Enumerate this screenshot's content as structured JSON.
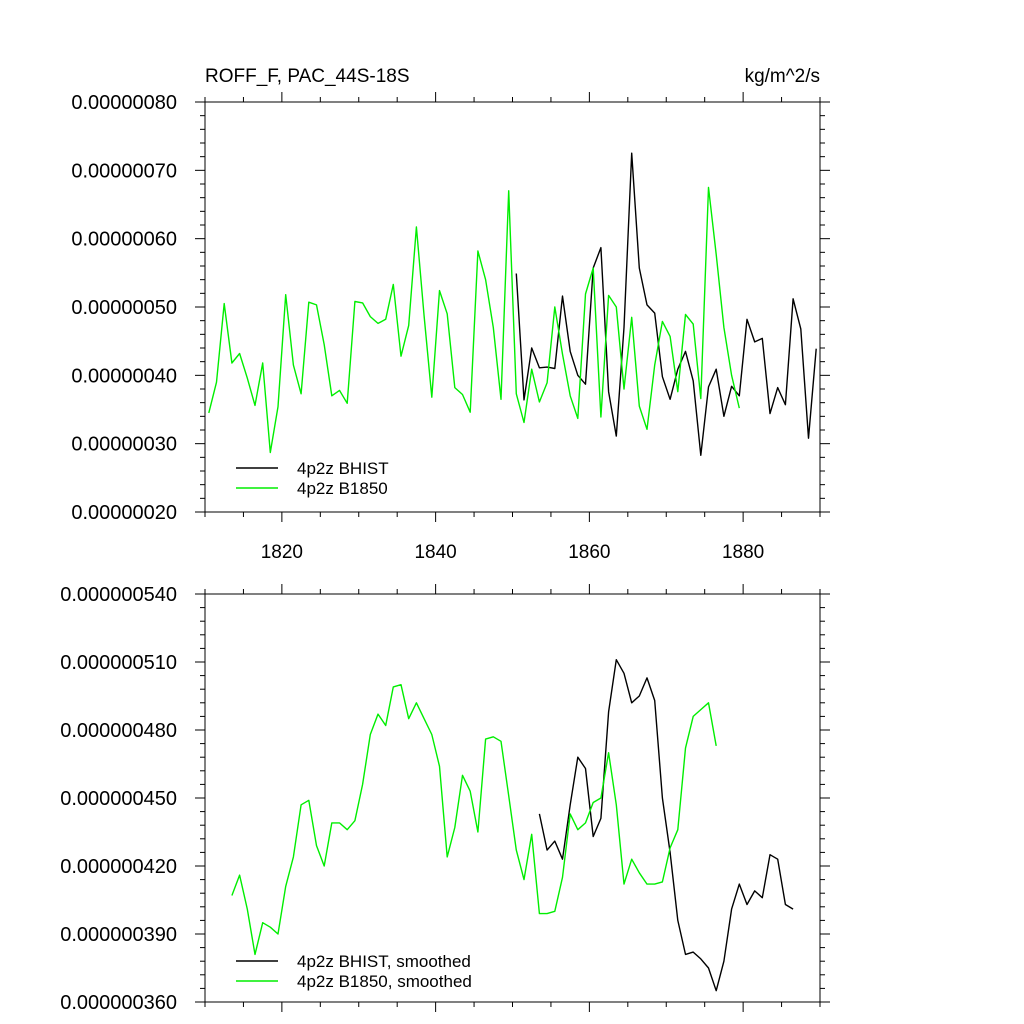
{
  "chart_data": [
    {
      "type": "line",
      "title": "ROFF_F, PAC_44S-18S",
      "units": "kg/m^2/s",
      "xlim": [
        1810,
        1890
      ],
      "ylim": [
        2e-07,
        8e-07
      ],
      "xticks": [
        1820,
        1840,
        1860,
        1880
      ],
      "xtick_labels": [
        "1820",
        "1840",
        "1860",
        "1880"
      ],
      "yticks": [
        2e-07,
        3e-07,
        4e-07,
        5e-07,
        6e-07,
        7e-07,
        8e-07
      ],
      "ytick_labels": [
        "0.00000020",
        "0.00000030",
        "0.00000040",
        "0.00000050",
        "0.00000060",
        "0.00000070",
        "0.00000080"
      ],
      "legend": "bottom-left",
      "series": [
        {
          "name": "4p2z BHIST",
          "color": "#000000",
          "x_start": 1850.5,
          "values": [
            5.49e-07,
            3.64e-07,
            4.4e-07,
            4.11e-07,
            4.12e-07,
            4.1e-07,
            5.16e-07,
            4.35e-07,
            4e-07,
            3.87e-07,
            5.57e-07,
            5.87e-07,
            3.76e-07,
            3.11e-07,
            4.7e-07,
            7.25e-07,
            5.57e-07,
            5.03e-07,
            4.91e-07,
            3.98e-07,
            3.65e-07,
            4.09e-07,
            4.35e-07,
            3.92e-07,
            2.83e-07,
            3.83e-07,
            4.09e-07,
            3.4e-07,
            3.84e-07,
            3.7e-07,
            4.82e-07,
            4.49e-07,
            4.54e-07,
            3.44e-07,
            3.82e-07,
            3.57e-07,
            5.12e-07,
            4.68e-07,
            3.08e-07,
            4.39e-07
          ]
        },
        {
          "name": "4p2z B1850",
          "color": "#00ee00",
          "x_start": 1810.5,
          "values": [
            3.45e-07,
            3.9e-07,
            5.05e-07,
            4.18e-07,
            4.32e-07,
            3.96e-07,
            3.56e-07,
            4.18e-07,
            2.87e-07,
            3.54e-07,
            5.18e-07,
            4.15e-07,
            3.73e-07,
            5.07e-07,
            5.03e-07,
            4.45e-07,
            3.7e-07,
            3.78e-07,
            3.59e-07,
            5.08e-07,
            5.06e-07,
            4.86e-07,
            4.76e-07,
            4.82e-07,
            5.33e-07,
            4.28e-07,
            4.73e-07,
            6.17e-07,
            4.87e-07,
            3.68e-07,
            5.24e-07,
            4.9e-07,
            3.82e-07,
            3.72e-07,
            3.46e-07,
            5.82e-07,
            5.4e-07,
            4.7e-07,
            3.65e-07,
            6.7e-07,
            3.73e-07,
            3.31e-07,
            4.09e-07,
            3.61e-07,
            3.89e-07,
            5e-07,
            4.31e-07,
            3.7e-07,
            3.37e-07,
            5.19e-07,
            5.57e-07,
            3.39e-07,
            5.17e-07,
            5e-07,
            3.8e-07,
            4.85e-07,
            3.55e-07,
            3.21e-07,
            4.15e-07,
            4.79e-07,
            4.57e-07,
            3.76e-07,
            4.89e-07,
            4.75e-07,
            3.66e-07,
            6.75e-07,
            5.77e-07,
            4.7e-07,
            4e-07,
            3.52e-07
          ]
        }
      ]
    },
    {
      "type": "line",
      "title": "",
      "units": "",
      "xlim": [
        1810,
        1890
      ],
      "ylim": [
        3.6e-07,
        5.4e-07
      ],
      "xticks": [
        1820,
        1840,
        1860,
        1880
      ],
      "xtick_labels": [],
      "yticks": [
        3.6e-07,
        3.9e-07,
        4.2e-07,
        4.5e-07,
        4.8e-07,
        5.1e-07,
        5.4e-07
      ],
      "ytick_labels": [
        "0.000000360",
        "0.000000390",
        "0.000000420",
        "0.000000450",
        "0.000000480",
        "0.000000510",
        "0.000000540"
      ],
      "legend": "bottom-left",
      "series": [
        {
          "name": "4p2z BHIST, smoothed",
          "color": "#000000",
          "x_start": 1853.5,
          "values": [
            4.43e-07,
            4.27e-07,
            4.31e-07,
            4.23e-07,
            4.47e-07,
            4.68e-07,
            4.63e-07,
            4.33e-07,
            4.41e-07,
            4.88e-07,
            5.11e-07,
            5.05e-07,
            4.92e-07,
            4.95e-07,
            5.03e-07,
            4.93e-07,
            4.5e-07,
            4.26e-07,
            3.96e-07,
            3.81e-07,
            3.82e-07,
            3.79e-07,
            3.75e-07,
            3.65e-07,
            3.78e-07,
            4.01e-07,
            4.12e-07,
            4.03e-07,
            4.09e-07,
            4.06e-07,
            4.25e-07,
            4.23e-07,
            4.03e-07,
            4.01e-07
          ]
        },
        {
          "name": "4p2z B1850, smoothed",
          "color": "#00ee00",
          "x_start": 1813.5,
          "values": [
            4.07e-07,
            4.16e-07,
            4.01e-07,
            3.81e-07,
            3.95e-07,
            3.93e-07,
            3.9e-07,
            4.11e-07,
            4.24e-07,
            4.47e-07,
            4.49e-07,
            4.29e-07,
            4.2e-07,
            4.39e-07,
            4.39e-07,
            4.36e-07,
            4.4e-07,
            4.56e-07,
            4.78e-07,
            4.87e-07,
            4.82e-07,
            4.99e-07,
            5e-07,
            4.85e-07,
            4.92e-07,
            4.85e-07,
            4.78e-07,
            4.64e-07,
            4.24e-07,
            4.37e-07,
            4.6e-07,
            4.53e-07,
            4.35e-07,
            4.76e-07,
            4.77e-07,
            4.75e-07,
            4.51e-07,
            4.27e-07,
            4.14e-07,
            4.34e-07,
            3.99e-07,
            3.99e-07,
            4e-07,
            4.15e-07,
            4.43e-07,
            4.36e-07,
            4.39e-07,
            4.48e-07,
            4.5e-07,
            4.7e-07,
            4.47e-07,
            4.12e-07,
            4.23e-07,
            4.17e-07,
            4.12e-07,
            4.12e-07,
            4.13e-07,
            4.28e-07,
            4.36e-07,
            4.72e-07,
            4.86e-07,
            4.89e-07,
            4.92e-07,
            4.73e-07
          ]
        }
      ]
    }
  ]
}
